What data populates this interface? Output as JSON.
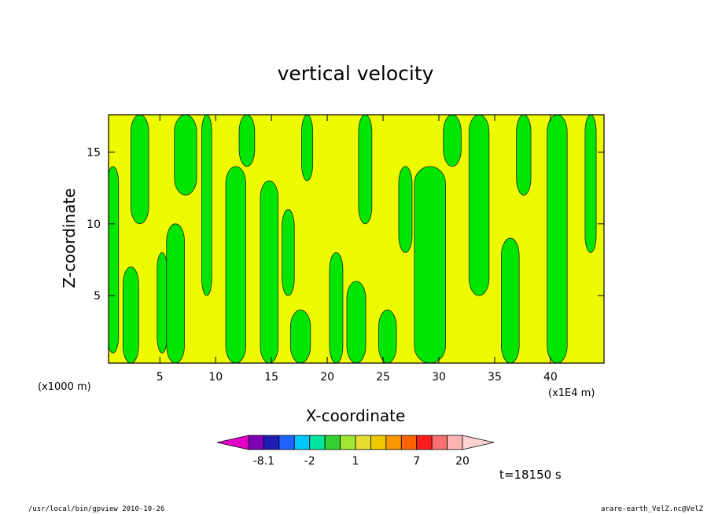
{
  "chart_data": {
    "type": "heatmap",
    "title": "vertical velocity",
    "xlabel": "X-coordinate",
    "ylabel": "Z-coordinate",
    "x_unit_left": "(x1000 m)",
    "x_unit_right": "(x1E4 m)",
    "xlim": [
      0.4,
      44.8
    ],
    "ylim": [
      0.3,
      17.6
    ],
    "x_ticks": [
      5,
      10,
      15,
      20,
      25,
      30,
      35,
      40
    ],
    "x_tick_labels": [
      "5",
      "10",
      "15",
      "20",
      "25",
      "30",
      "35",
      "40"
    ],
    "y_ticks": [
      5,
      10,
      15
    ],
    "y_tick_labels": [
      "5",
      "10",
      "15"
    ],
    "field": {
      "columns": [
        {
          "x": 0.8,
          "w": 1.0,
          "z1": 1,
          "z2": 14,
          "level": "green"
        },
        {
          "x": 2.4,
          "w": 1.4,
          "z1": 0.3,
          "z2": 7,
          "level": "green"
        },
        {
          "x": 3.2,
          "w": 1.6,
          "z1": 10,
          "z2": 17.6,
          "level": "green"
        },
        {
          "x": 5.2,
          "w": 0.9,
          "z1": 1,
          "z2": 8,
          "level": "green"
        },
        {
          "x": 6.4,
          "w": 1.6,
          "z1": 0.3,
          "z2": 10,
          "level": "green"
        },
        {
          "x": 7.3,
          "w": 2.0,
          "z1": 12,
          "z2": 17.6,
          "level": "green"
        },
        {
          "x": 9.2,
          "w": 0.9,
          "z1": 5,
          "z2": 17.6,
          "level": "green"
        },
        {
          "x": 11.8,
          "w": 1.8,
          "z1": 0.3,
          "z2": 14,
          "level": "green"
        },
        {
          "x": 12.8,
          "w": 1.4,
          "z1": 14,
          "z2": 17.6,
          "level": "green"
        },
        {
          "x": 14.8,
          "w": 1.6,
          "z1": 0.3,
          "z2": 13,
          "level": "green"
        },
        {
          "x": 16.5,
          "w": 1.1,
          "z1": 5,
          "z2": 11,
          "level": "green"
        },
        {
          "x": 17.6,
          "w": 1.8,
          "z1": 0.3,
          "z2": 4,
          "level": "green"
        },
        {
          "x": 18.2,
          "w": 1.0,
          "z1": 13,
          "z2": 17.6,
          "level": "green"
        },
        {
          "x": 20.8,
          "w": 1.2,
          "z1": 0.3,
          "z2": 8,
          "level": "green"
        },
        {
          "x": 22.6,
          "w": 1.7,
          "z1": 0.3,
          "z2": 6,
          "level": "green"
        },
        {
          "x": 23.4,
          "w": 1.2,
          "z1": 10,
          "z2": 17.6,
          "level": "green"
        },
        {
          "x": 25.4,
          "w": 1.6,
          "z1": 0.3,
          "z2": 4,
          "level": "green"
        },
        {
          "x": 27.0,
          "w": 1.2,
          "z1": 8,
          "z2": 14,
          "level": "green"
        },
        {
          "x": 29.2,
          "w": 2.8,
          "z1": 0.3,
          "z2": 14,
          "level": "green"
        },
        {
          "x": 31.2,
          "w": 1.6,
          "z1": 14,
          "z2": 17.6,
          "level": "green"
        },
        {
          "x": 33.6,
          "w": 1.8,
          "z1": 5,
          "z2": 17.6,
          "level": "green"
        },
        {
          "x": 36.4,
          "w": 1.6,
          "z1": 0.3,
          "z2": 9,
          "level": "green"
        },
        {
          "x": 37.6,
          "w": 1.3,
          "z1": 12,
          "z2": 17.6,
          "level": "green"
        },
        {
          "x": 40.6,
          "w": 1.8,
          "z1": 0.3,
          "z2": 17.6,
          "level": "green"
        },
        {
          "x": 43.6,
          "w": 1.0,
          "z1": 8,
          "z2": 17.6,
          "level": "green"
        }
      ]
    },
    "colorbar": {
      "colors": [
        "#e400c8",
        "#8000b8",
        "#1e1eb4",
        "#1e64ff",
        "#00c8ff",
        "#00e6a0",
        "#32d232",
        "#a0e632",
        "#e6dc32",
        "#f0c800",
        "#fa9600",
        "#ff6400",
        "#ff1e1e",
        "#fa7070",
        "#ffb4b4",
        "#ffd2d2"
      ],
      "labels": [
        "-8.1",
        "-2",
        "1",
        "7",
        "20"
      ],
      "label_after_index": [
        1,
        4,
        7,
        11,
        14
      ]
    },
    "time_label": "t=18150 s"
  },
  "footer": {
    "left": "/usr/local/bin/gpview  2010-10-26",
    "right": "arare-earth_VelZ.nc@VelZ"
  }
}
